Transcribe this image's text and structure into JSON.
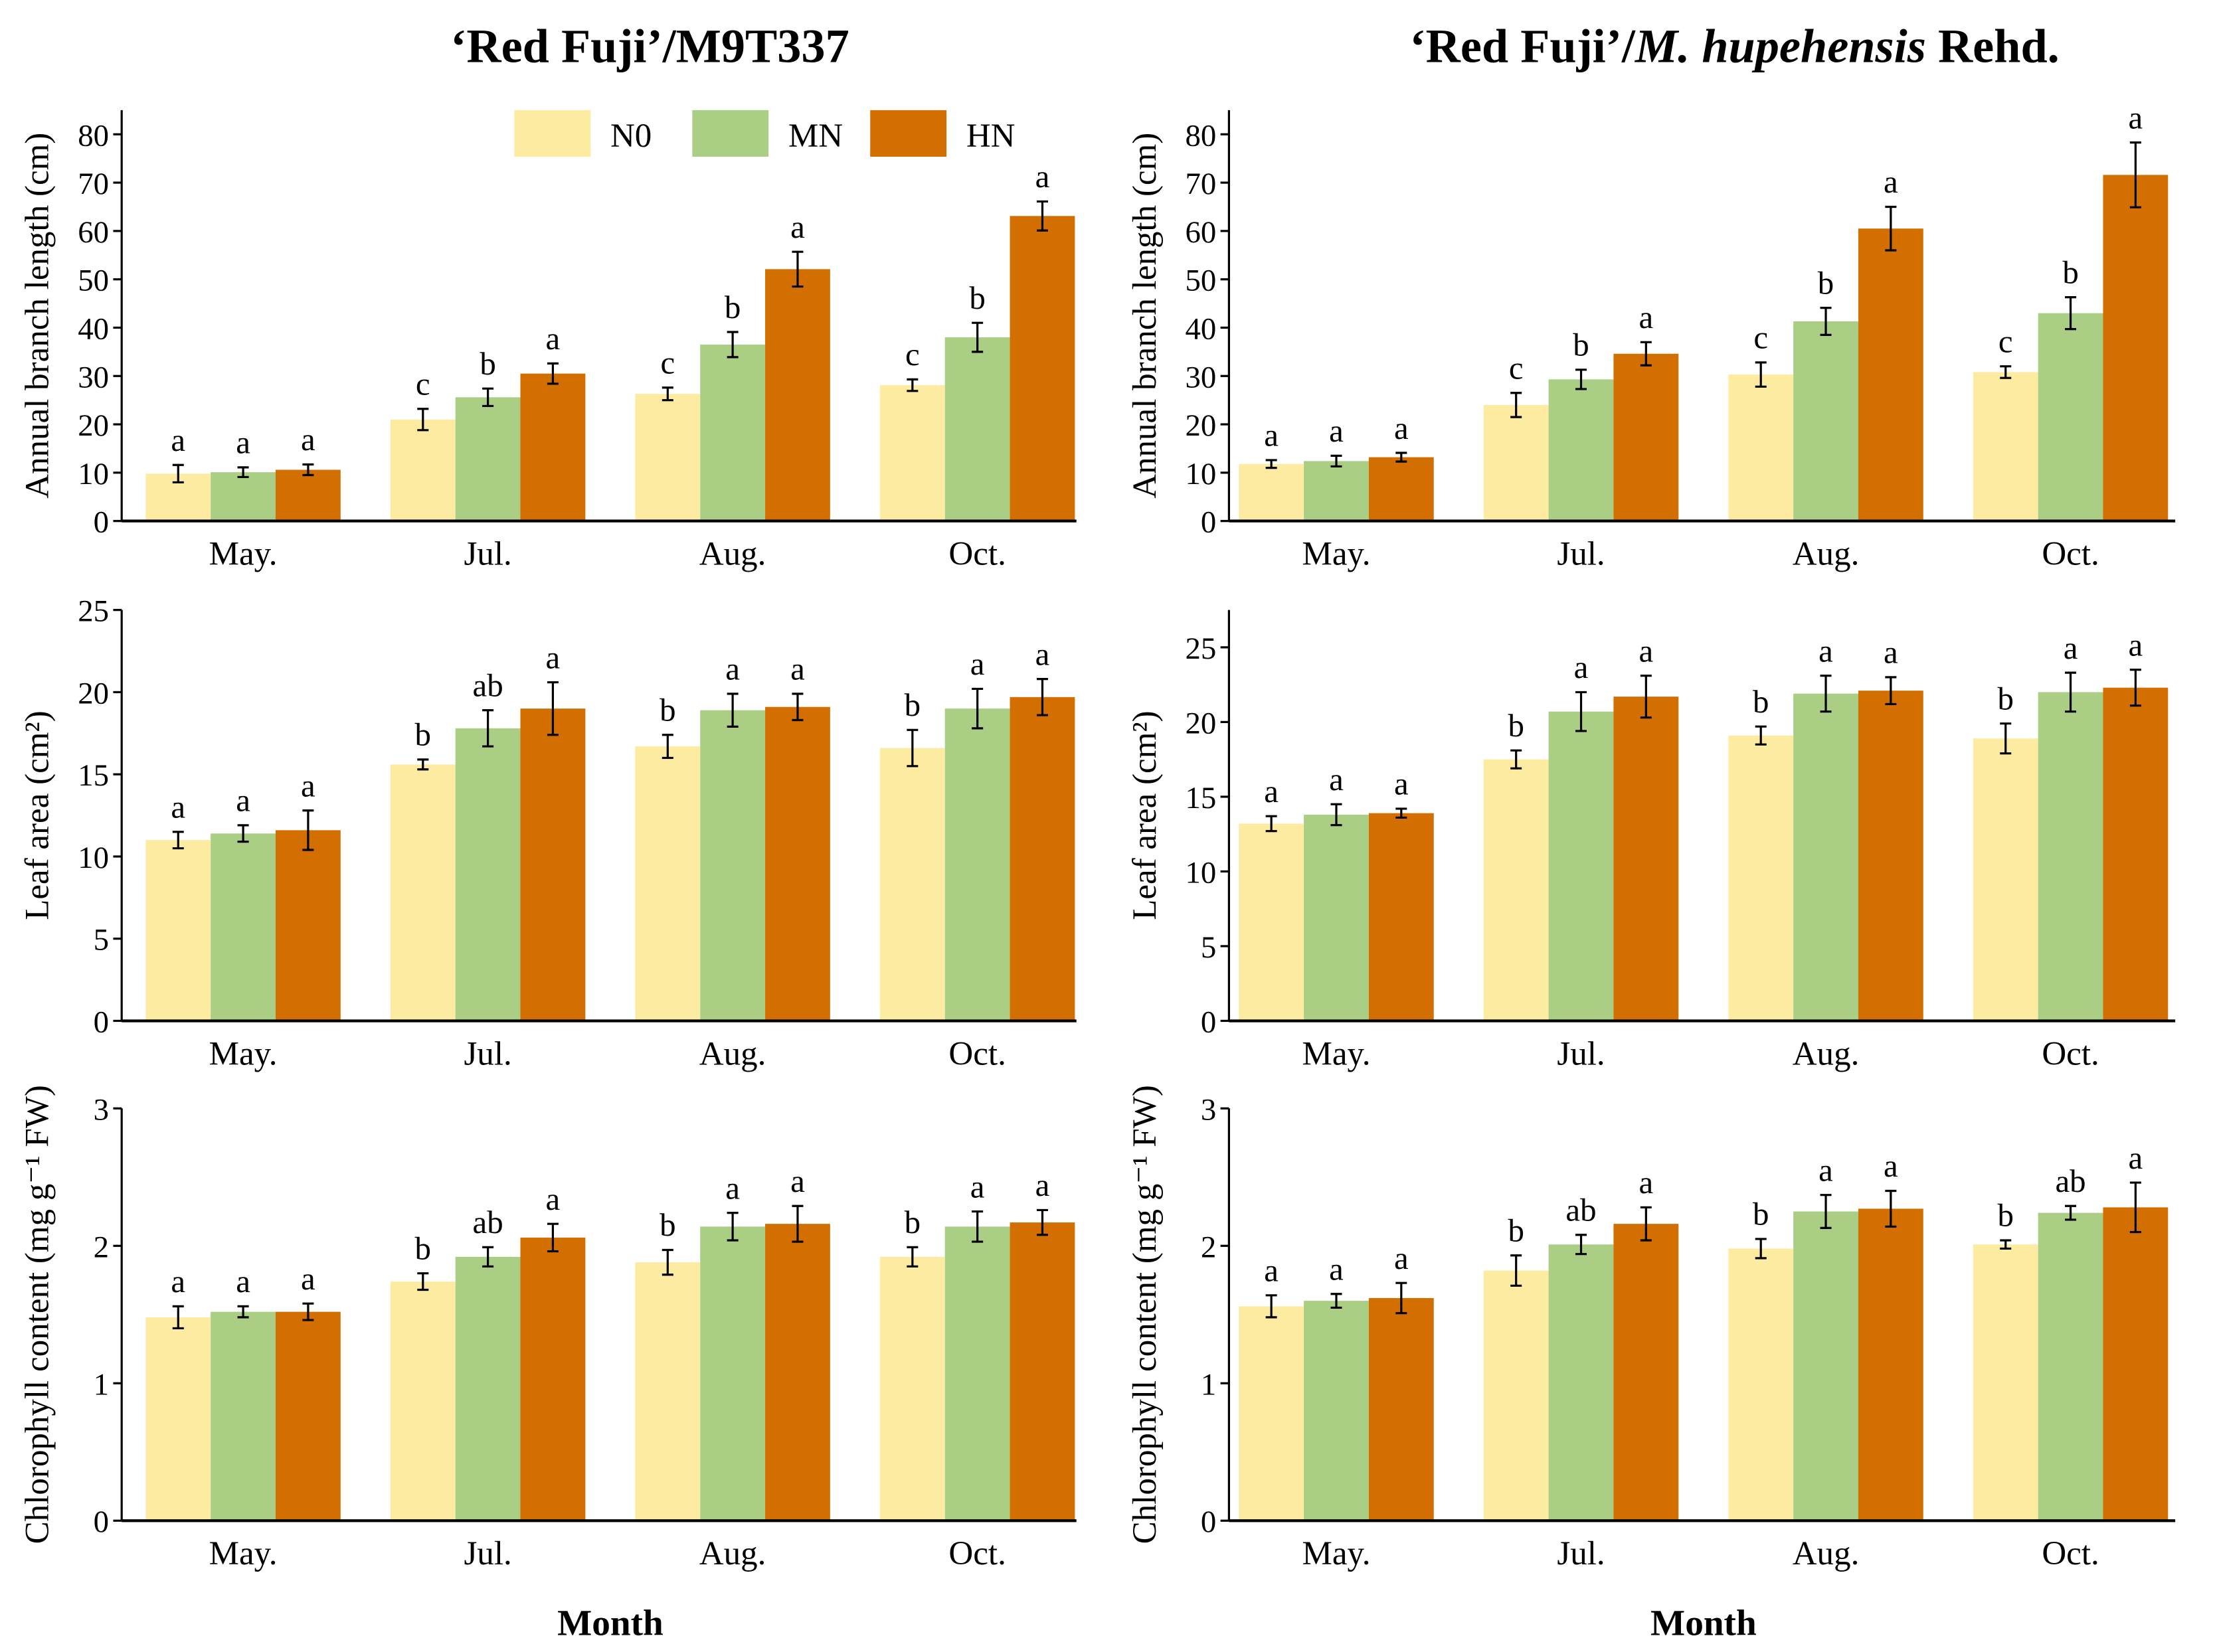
{
  "colors": {
    "N0": "#FDEBA2",
    "MN": "#AACF84",
    "HN": "#D36F00"
  },
  "titles": {
    "left": {
      "plain": "‘Red Fuji’/M9T337"
    },
    "right": {
      "pre": "‘Red Fuji’/",
      "italic": "M. hupehensis",
      "post": " Rehd."
    }
  },
  "xlabel": "Month",
  "legend": [
    "N0",
    "MN",
    "HN"
  ],
  "chart_data": [
    {
      "type": "bar",
      "panel": "left-row1",
      "title": "‘Red Fuji’/M9T337",
      "xlabel": "",
      "ylabel": "Annual branch length (cm)",
      "ylim": [
        0,
        85
      ],
      "yticks": [
        0,
        10,
        20,
        30,
        40,
        50,
        60,
        70,
        80
      ],
      "categories": [
        "May.",
        "Jul.",
        "Aug.",
        "Oct."
      ],
      "series": [
        {
          "name": "N0",
          "values": [
            9.8,
            21.0,
            26.3,
            28.1
          ],
          "errors": [
            1.8,
            2.2,
            1.3,
            1.2
          ],
          "letters": [
            "a",
            "c",
            "c",
            "c"
          ]
        },
        {
          "name": "MN",
          "values": [
            10.1,
            25.6,
            36.5,
            38.0
          ],
          "errors": [
            1.0,
            1.8,
            2.6,
            3.0
          ],
          "letters": [
            "a",
            "b",
            "b",
            "b"
          ]
        },
        {
          "name": "HN",
          "values": [
            10.6,
            30.5,
            52.1,
            63.1
          ],
          "errors": [
            1.1,
            2.1,
            3.6,
            3.0
          ],
          "letters": [
            "a",
            "a",
            "a",
            "a"
          ]
        }
      ],
      "legend": "top-right"
    },
    {
      "type": "bar",
      "panel": "right-row1",
      "title": "‘Red Fuji’/M. hupehensis Rehd.",
      "xlabel": "",
      "ylabel": "Annual branch length (cm)",
      "ylim": [
        0,
        85
      ],
      "yticks": [
        0,
        10,
        20,
        30,
        40,
        50,
        60,
        70,
        80
      ],
      "categories": [
        "May.",
        "Jul.",
        "Aug.",
        "Oct."
      ],
      "series": [
        {
          "name": "N0",
          "values": [
            11.8,
            24.0,
            30.3,
            30.8
          ],
          "errors": [
            0.8,
            2.5,
            2.5,
            1.2
          ],
          "letters": [
            "a",
            "c",
            "c",
            "c"
          ]
        },
        {
          "name": "MN",
          "values": [
            12.4,
            29.3,
            41.3,
            43.0
          ],
          "errors": [
            1.1,
            2.0,
            2.8,
            3.3
          ],
          "letters": [
            "a",
            "b",
            "b",
            "b"
          ]
        },
        {
          "name": "HN",
          "values": [
            13.2,
            34.6,
            60.5,
            71.6
          ],
          "errors": [
            0.9,
            2.4,
            4.5,
            6.7
          ],
          "letters": [
            "a",
            "a",
            "a",
            "a"
          ]
        }
      ]
    },
    {
      "type": "bar",
      "panel": "left-row2",
      "xlabel": "",
      "ylabel": "Leaf area (cm²)",
      "ylim": [
        0,
        25
      ],
      "yticks": [
        0,
        5,
        10,
        15,
        20,
        25
      ],
      "categories": [
        "May.",
        "Jul.",
        "Aug.",
        "Oct."
      ],
      "series": [
        {
          "name": "N0",
          "values": [
            11.0,
            15.6,
            16.7,
            16.6
          ],
          "errors": [
            0.5,
            0.3,
            0.7,
            1.1
          ],
          "letters": [
            "a",
            "b",
            "b",
            "b"
          ]
        },
        {
          "name": "MN",
          "values": [
            11.4,
            17.8,
            18.9,
            19.0
          ],
          "errors": [
            0.5,
            1.1,
            1.0,
            1.2
          ],
          "letters": [
            "a",
            "ab",
            "a",
            "a"
          ]
        },
        {
          "name": "HN",
          "values": [
            11.6,
            19.0,
            19.1,
            19.7
          ],
          "errors": [
            1.2,
            1.6,
            0.8,
            1.1
          ],
          "letters": [
            "a",
            "a",
            "a",
            "a"
          ]
        }
      ]
    },
    {
      "type": "bar",
      "panel": "right-row2",
      "xlabel": "",
      "ylabel": "Leaf area (cm²)",
      "ylim": [
        0,
        27.5
      ],
      "yticks": [
        0,
        5,
        10,
        15,
        20,
        25
      ],
      "categories": [
        "May.",
        "Jul.",
        "Aug.",
        "Oct."
      ],
      "series": [
        {
          "name": "N0",
          "values": [
            13.2,
            17.5,
            19.1,
            18.9
          ],
          "errors": [
            0.5,
            0.6,
            0.6,
            1.0
          ],
          "letters": [
            "a",
            "b",
            "b",
            "b"
          ]
        },
        {
          "name": "MN",
          "values": [
            13.8,
            20.7,
            21.9,
            22.0
          ],
          "errors": [
            0.7,
            1.3,
            1.2,
            1.3
          ],
          "letters": [
            "a",
            "a",
            "a",
            "a"
          ]
        },
        {
          "name": "HN",
          "values": [
            13.9,
            21.7,
            22.1,
            22.3
          ],
          "errors": [
            0.3,
            1.4,
            0.9,
            1.2
          ],
          "letters": [
            "a",
            "a",
            "a",
            "a"
          ]
        }
      ]
    },
    {
      "type": "bar",
      "panel": "left-row3",
      "xlabel": "Month",
      "ylabel": "Chlorophyll content (mg g⁻¹ FW)",
      "ylim": [
        0,
        3
      ],
      "yticks": [
        0,
        1,
        2,
        3
      ],
      "categories": [
        "May.",
        "Jul.",
        "Aug.",
        "Oct."
      ],
      "series": [
        {
          "name": "N0",
          "values": [
            1.48,
            1.74,
            1.88,
            1.92
          ],
          "errors": [
            0.08,
            0.06,
            0.09,
            0.07
          ],
          "letters": [
            "a",
            "b",
            "b",
            "b"
          ]
        },
        {
          "name": "MN",
          "values": [
            1.52,
            1.92,
            2.14,
            2.14
          ],
          "errors": [
            0.04,
            0.07,
            0.1,
            0.11
          ],
          "letters": [
            "a",
            "ab",
            "a",
            "a"
          ]
        },
        {
          "name": "HN",
          "values": [
            1.52,
            2.06,
            2.16,
            2.17
          ],
          "errors": [
            0.06,
            0.1,
            0.13,
            0.09
          ],
          "letters": [
            "a",
            "a",
            "a",
            "a"
          ]
        }
      ]
    },
    {
      "type": "bar",
      "panel": "right-row3",
      "xlabel": "Month",
      "ylabel": "Chlorophyll content (mg g⁻¹ FW)",
      "ylim": [
        0,
        3
      ],
      "yticks": [
        0,
        1,
        2,
        3
      ],
      "categories": [
        "May.",
        "Jul.",
        "Aug.",
        "Oct."
      ],
      "series": [
        {
          "name": "N0",
          "values": [
            1.56,
            1.82,
            1.98,
            2.01
          ],
          "errors": [
            0.08,
            0.11,
            0.07,
            0.03
          ],
          "letters": [
            "a",
            "b",
            "b",
            "b"
          ]
        },
        {
          "name": "MN",
          "values": [
            1.6,
            2.01,
            2.25,
            2.24
          ],
          "errors": [
            0.05,
            0.07,
            0.12,
            0.05
          ],
          "letters": [
            "a",
            "ab",
            "a",
            "ab"
          ]
        },
        {
          "name": "HN",
          "values": [
            1.62,
            2.16,
            2.27,
            2.28
          ],
          "errors": [
            0.11,
            0.12,
            0.13,
            0.18
          ],
          "letters": [
            "a",
            "a",
            "a",
            "a"
          ]
        }
      ]
    }
  ]
}
